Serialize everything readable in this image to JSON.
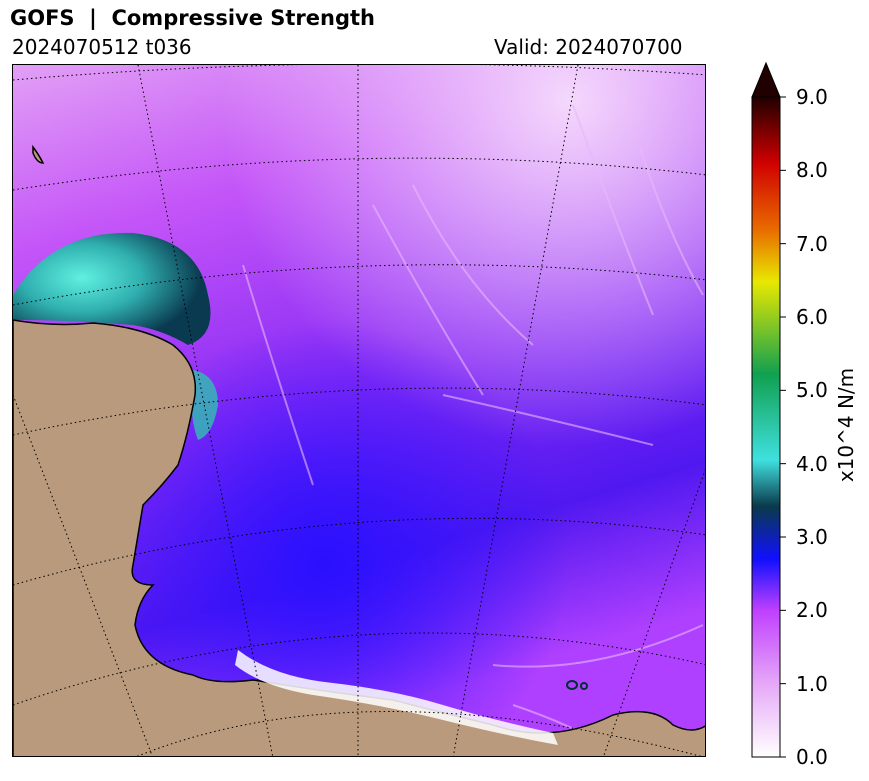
{
  "header": {
    "title": "GOFS  |  Compressive Strength",
    "init_time": "2024070512 t036",
    "valid": "Valid: 2024070700"
  },
  "colorbar": {
    "label": "x10^4 N/m",
    "ticks": [
      "0.0",
      "1.0",
      "2.0",
      "3.0",
      "4.0",
      "5.0",
      "6.0",
      "7.0",
      "8.0",
      "9.0"
    ],
    "min": 0.0,
    "max": 9.0,
    "extend": "max",
    "colors": [
      "#ffffff",
      "#e6a8f7",
      "#c040ff",
      "#1010ff",
      "#0a3a4a",
      "#40e0e0",
      "#10a050",
      "#e8e800",
      "#e86a00",
      "#d00000",
      "#200000"
    ]
  },
  "map": {
    "land_color": "#b99a7c",
    "ice_color_low": "#c040ff",
    "ice_color_mid": "#1010ff",
    "ice_color_high": "#40e0e0",
    "graticule": "dotted"
  }
}
